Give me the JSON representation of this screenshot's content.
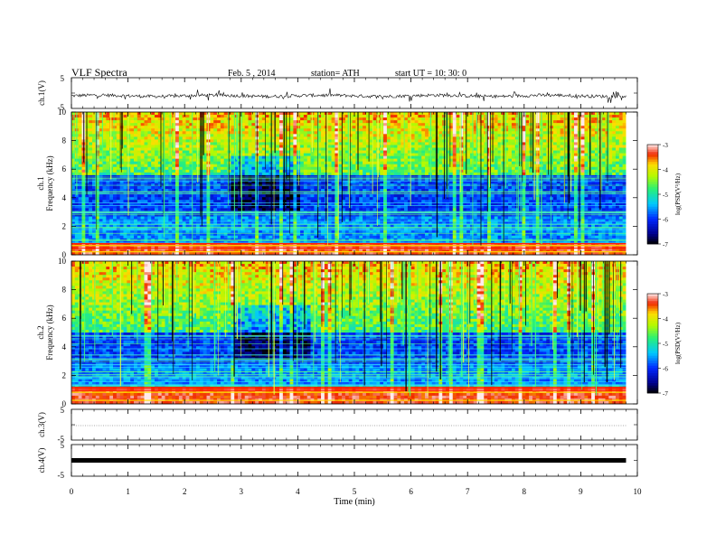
{
  "header": {
    "title": "VLF  Spectra",
    "date": "Feb. 5  , 2014",
    "station": "station= ATH",
    "start": "start  UT  =    10: 30: 0"
  },
  "chart_data": [
    {
      "type": "line",
      "name": "ch1-waveform",
      "ylabel": "ch.1(V)",
      "yticks": [
        "5",
        "-5"
      ],
      "ylim": [
        -5,
        5
      ],
      "xlim": [
        0,
        10
      ],
      "data_end_min": 9.8,
      "baseline_v": 0.0,
      "trace_color": "#000000"
    },
    {
      "type": "heatmap",
      "name": "ch1-spectrogram",
      "ylabel": "ch.1\nFrequency  (kHz)",
      "yticks": [
        "0",
        "2",
        "4",
        "6",
        "8",
        "10"
      ],
      "ylim": [
        0,
        10
      ],
      "xlim": [
        0,
        10
      ],
      "data_end_min": 9.8,
      "colorbar": {
        "label": "log(PSD(V²/Hz)",
        "ticks": [
          "-3",
          "-4",
          "-5",
          "-6",
          "-7"
        ],
        "range": [
          -7,
          -3
        ]
      },
      "noise_band_khz": [
        0,
        0.8
      ],
      "quiet_band_khz": [
        1,
        5.5
      ],
      "disturbance_min": [
        2.8,
        4.0
      ]
    },
    {
      "type": "heatmap",
      "name": "ch2-spectrogram",
      "ylabel": "ch.2\nFrequency  (kHz)",
      "yticks": [
        "0",
        "2",
        "4",
        "6",
        "8",
        "10"
      ],
      "ylim": [
        0,
        10
      ],
      "xlim": [
        0,
        10
      ],
      "data_end_min": 9.8,
      "colorbar": {
        "label": "log(PSD(V²/Hz)",
        "ticks": [
          "-3",
          "-4",
          "-5",
          "-6",
          "-7"
        ],
        "range": [
          -7,
          -3
        ]
      },
      "noise_band_khz": [
        0,
        1.2
      ],
      "quiet_band_khz": [
        1.5,
        5.0
      ],
      "disturbance_min": [
        2.8,
        4.2
      ]
    },
    {
      "type": "line",
      "name": "ch3-waveform",
      "ylabel": "ch.3(V)",
      "yticks": [
        "5",
        "-5"
      ],
      "ylim": [
        -5,
        5
      ],
      "xlim": [
        0,
        10
      ],
      "data_end_min": 9.8,
      "baseline_v": 0.0
    },
    {
      "type": "line",
      "name": "ch4-waveform",
      "ylabel": "ch.4(V)",
      "yticks": [
        "5",
        "-5"
      ],
      "ylim": [
        -5,
        5
      ],
      "xlim": [
        0,
        10
      ],
      "data_end_min": 9.8,
      "baseline_v": 0.0
    }
  ],
  "xaxis": {
    "label": "Time  (min)",
    "ticks": [
      "0",
      "1",
      "2",
      "3",
      "4",
      "5",
      "6",
      "7",
      "8",
      "9",
      "10"
    ]
  }
}
